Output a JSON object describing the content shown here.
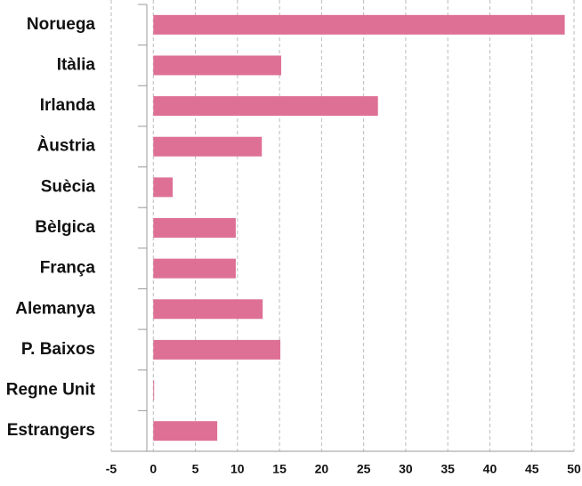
{
  "chart_data": {
    "type": "bar",
    "orientation": "horizontal",
    "categories": [
      "Noruega",
      "Itàlia",
      "Irlanda",
      "Àustria",
      "Suècia",
      "Bèlgica",
      "França",
      "Alemanya",
      "P. Baixos",
      "Regne Unit",
      "Estrangers"
    ],
    "values": [
      48.9,
      15.2,
      26.7,
      12.9,
      2.3,
      9.8,
      9.8,
      13.0,
      15.1,
      0.1,
      7.6
    ],
    "color": "#de7096",
    "xlim": [
      -5,
      50
    ],
    "xticks": [
      -5,
      0,
      5,
      10,
      15,
      20,
      25,
      30,
      35,
      40,
      45,
      50
    ],
    "grid": true
  }
}
